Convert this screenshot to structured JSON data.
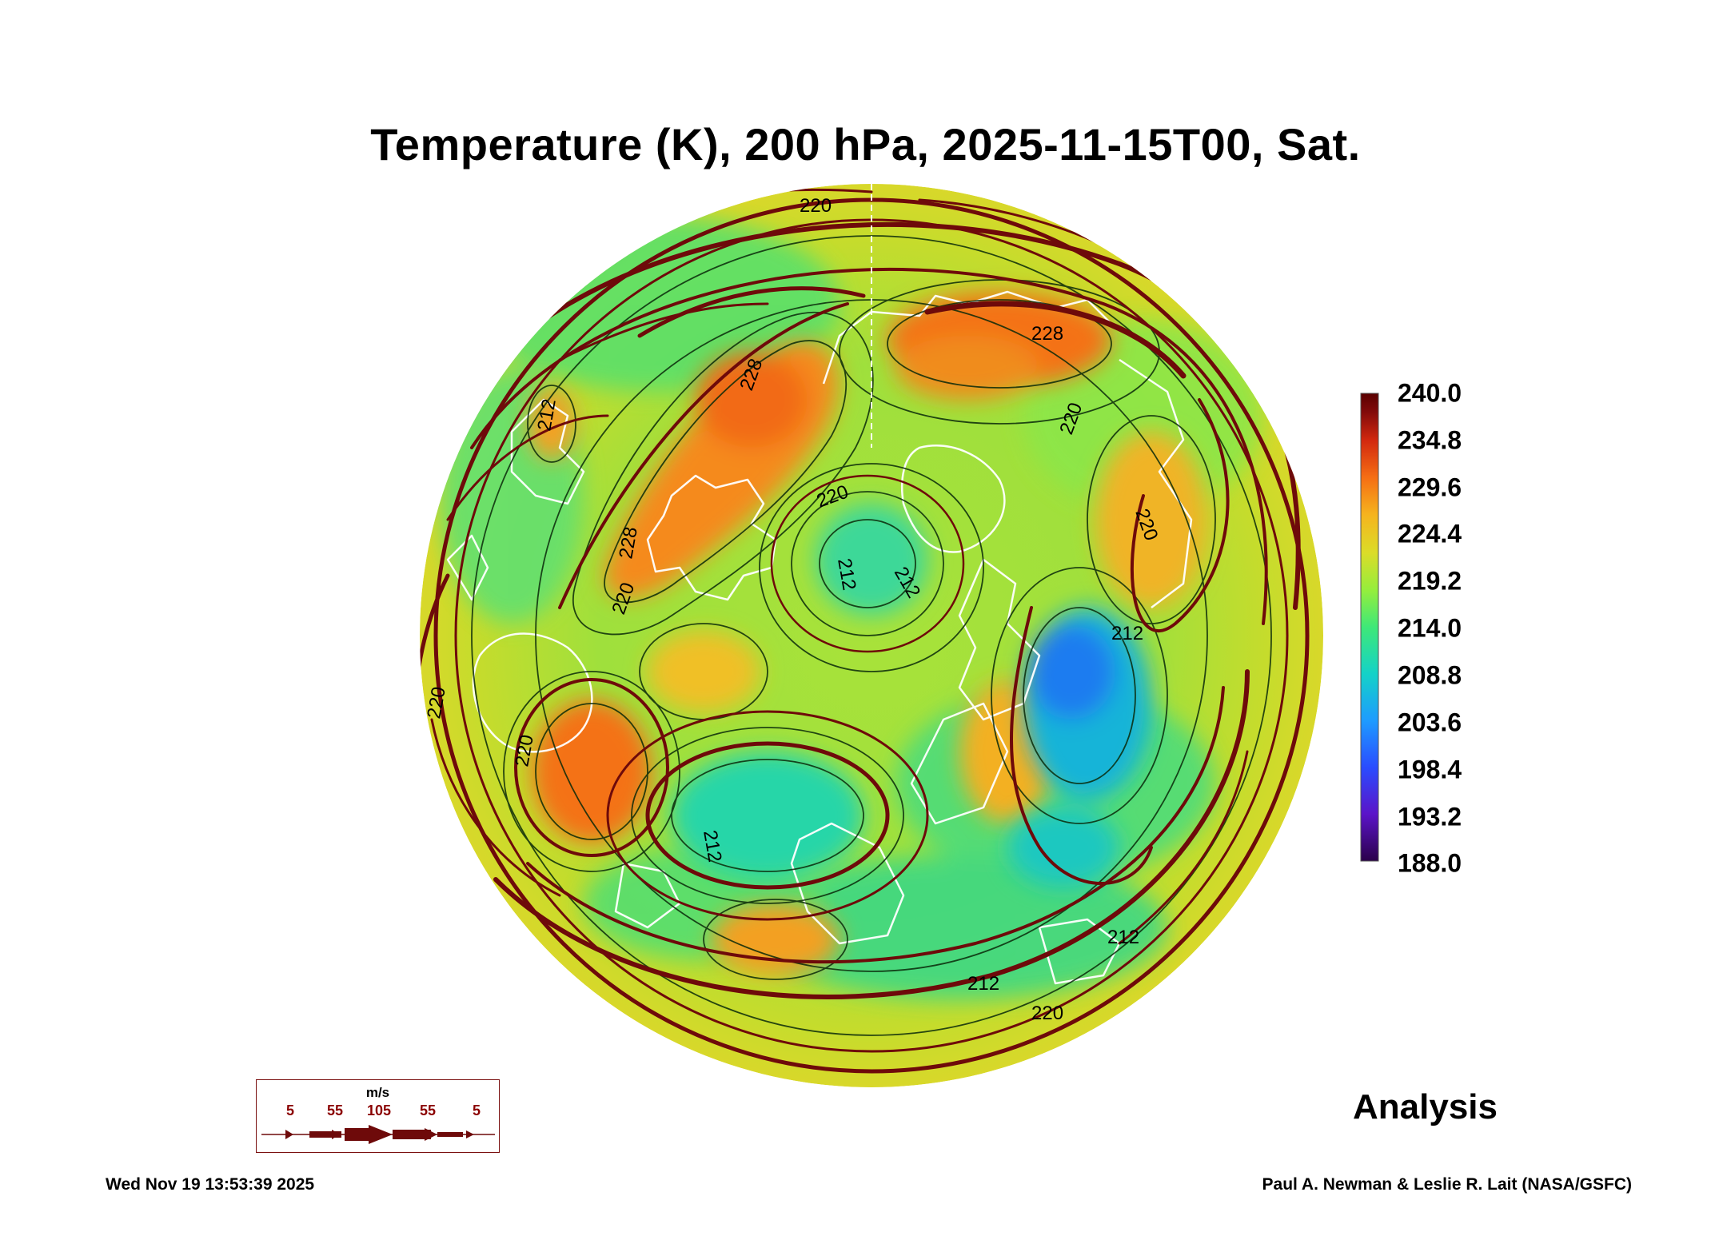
{
  "title": "Temperature (K), 200 hPa, 2025-11-15T00, Sat.",
  "colorbar": {
    "labels": [
      "240.0",
      "234.8",
      "229.6",
      "224.4",
      "219.2",
      "214.0",
      "208.8",
      "203.6",
      "198.4",
      "193.2",
      "188.0"
    ],
    "range": [
      188.0,
      240.0
    ],
    "colors": [
      "#2a004a",
      "#5b14c8",
      "#2a4cff",
      "#1e9bff",
      "#14d2c8",
      "#3ee878",
      "#96ee3c",
      "#dcdc28",
      "#f5b41e",
      "#f56e14",
      "#d2280f",
      "#820a0a",
      "#5a0000"
    ]
  },
  "wind_legend": {
    "unit": "m/s",
    "speeds": [
      "5",
      "55",
      "105",
      "55",
      "5"
    ]
  },
  "contour_labels": [
    "220",
    "228",
    "228",
    "220",
    "212",
    "212",
    "212",
    "212",
    "220",
    "220",
    "228",
    "212",
    "220",
    "212",
    "220",
    "212",
    "220",
    "220"
  ],
  "label_text": {
    "analysis": "Analysis",
    "timestamp": "Wed Nov 19 13:53:39 2025",
    "credit": "Paul A. Newman & Leslie R. Lait (NASA/GSFC)"
  },
  "colors": {
    "streamline": "#6e0a0a",
    "contour": "#0a2a0a",
    "coast": "#ffffff"
  }
}
